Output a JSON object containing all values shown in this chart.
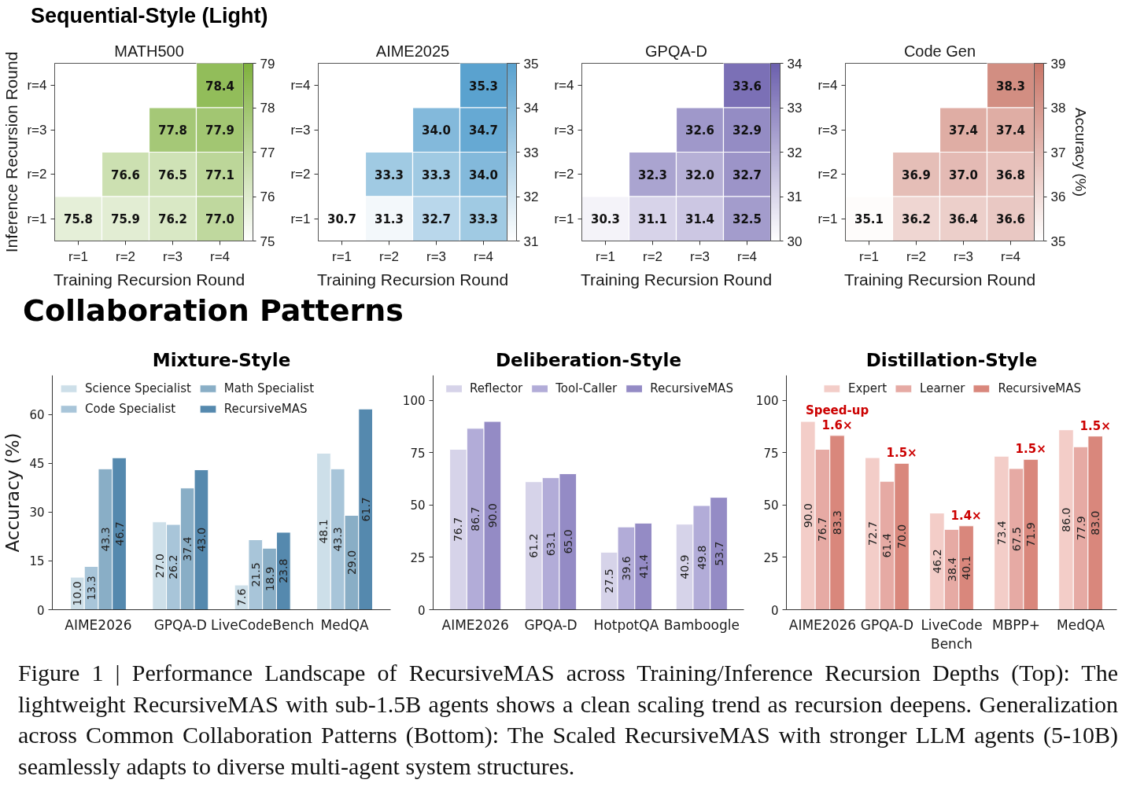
{
  "chart_data": [
    {
      "type": "heatmap",
      "title": "MATH500",
      "xlabel": "Training Recursion Round",
      "ylabel": "Inference Recursion Round",
      "annotations": [
        "Sequential-Style (Light)"
      ],
      "categories": [
        "r=1",
        "r=2",
        "r=3",
        "r=4"
      ],
      "y_categories": [
        "r=4",
        "r=3",
        "r=2",
        "r=1"
      ],
      "cells": [
        [
          null,
          null,
          null,
          78.4
        ],
        [
          null,
          null,
          77.8,
          77.9
        ],
        [
          null,
          76.6,
          76.5,
          77.1
        ],
        [
          75.8,
          75.9,
          76.2,
          77.0
        ]
      ],
      "cell_labels": [
        [
          null,
          null,
          null,
          "78.4"
        ],
        [
          null,
          null,
          "77.8",
          "77.9"
        ],
        [
          null,
          "76.6",
          "76.5",
          "77.1"
        ],
        [
          "75.8",
          "75.9",
          "76.2",
          "77.0"
        ]
      ],
      "clim": [
        75,
        79
      ],
      "cticks": [
        75,
        76,
        77,
        78,
        79
      ],
      "color": "#7fb13d"
    },
    {
      "type": "heatmap",
      "title": "AIME2025",
      "xlabel": "Training Recursion Round",
      "categories": [
        "r=1",
        "r=2",
        "r=3",
        "r=4"
      ],
      "y_categories": [
        "r=4",
        "r=3",
        "r=2",
        "r=1"
      ],
      "cells": [
        [
          null,
          null,
          null,
          35.3
        ],
        [
          null,
          null,
          34.0,
          34.7
        ],
        [
          null,
          33.3,
          33.3,
          34.0
        ],
        [
          30.7,
          31.3,
          32.7,
          33.3
        ]
      ],
      "cell_labels": [
        [
          null,
          null,
          null,
          "35.3"
        ],
        [
          null,
          null,
          "34.0",
          "34.7"
        ],
        [
          null,
          "33.3",
          "33.3",
          "34.0"
        ],
        [
          "30.7",
          "31.3",
          "32.7",
          "33.3"
        ]
      ],
      "clim": [
        31,
        35
      ],
      "cticks": [
        31,
        32,
        33,
        34,
        35
      ],
      "color": "#5aa2cf"
    },
    {
      "type": "heatmap",
      "title": "GPQA-D",
      "xlabel": "Training Recursion Round",
      "categories": [
        "r=1",
        "r=2",
        "r=3",
        "r=4"
      ],
      "y_categories": [
        "r=4",
        "r=3",
        "r=2",
        "r=1"
      ],
      "cells": [
        [
          null,
          null,
          null,
          33.6
        ],
        [
          null,
          null,
          32.6,
          32.9
        ],
        [
          null,
          32.3,
          32.0,
          32.7
        ],
        [
          30.3,
          31.1,
          31.4,
          32.5
        ]
      ],
      "cell_labels": [
        [
          null,
          null,
          null,
          "33.6"
        ],
        [
          null,
          null,
          "32.6",
          "32.9"
        ],
        [
          null,
          "32.3",
          "32.0",
          "32.7"
        ],
        [
          "30.3",
          "31.1",
          "31.4",
          "32.5"
        ]
      ],
      "clim": [
        30,
        34
      ],
      "cticks": [
        30,
        31,
        32,
        33,
        34
      ],
      "color": "#6c60ae"
    },
    {
      "type": "heatmap",
      "title": "Code Gen",
      "xlabel": "Training Recursion Round",
      "clabel": "Accuracy (%)",
      "categories": [
        "r=1",
        "r=2",
        "r=3",
        "r=4"
      ],
      "y_categories": [
        "r=4",
        "r=3",
        "r=2",
        "r=1"
      ],
      "cells": [
        [
          null,
          null,
          null,
          38.3
        ],
        [
          null,
          null,
          37.4,
          37.4
        ],
        [
          null,
          36.9,
          37.0,
          36.8
        ],
        [
          35.1,
          36.2,
          36.4,
          36.6
        ]
      ],
      "cell_labels": [
        [
          null,
          null,
          null,
          "38.3"
        ],
        [
          null,
          null,
          "37.4",
          "37.4"
        ],
        [
          null,
          "36.9",
          "37.0",
          "36.8"
        ],
        [
          "35.1",
          "36.2",
          "36.4",
          "36.6"
        ]
      ],
      "clim": [
        35,
        39
      ],
      "cticks": [
        35,
        36,
        37,
        38,
        39
      ],
      "color": "#c97668"
    },
    {
      "type": "bar",
      "title": "Mixture-Style",
      "ylabel": "Accuracy (%)",
      "annotations": [
        "Collaboration Patterns"
      ],
      "categories": [
        "AIME2026",
        "GPQA-D",
        "LiveCodeBench",
        "MedQA"
      ],
      "series": [
        {
          "name": "Science Specialist",
          "color": "#cddfe9",
          "values": [
            10.0,
            27.0,
            7.6,
            48.1
          ],
          "value_labels": [
            "10.0",
            "27.0",
            "7.6",
            "48.1"
          ]
        },
        {
          "name": "Code Specialist",
          "color": "#a8c5d9",
          "values": [
            13.3,
            26.2,
            21.5,
            43.3
          ],
          "value_labels": [
            "13.3",
            "26.2",
            "21.5",
            "43.3"
          ]
        },
        {
          "name": "Math Specialist",
          "color": "#89aec6",
          "values": [
            43.3,
            37.4,
            18.9,
            29.0
          ],
          "value_labels": [
            "43.3",
            "37.4",
            "18.9",
            "29.0"
          ]
        },
        {
          "name": "RecursiveMAS",
          "color": "#5589ae",
          "values": [
            46.7,
            43.0,
            23.8,
            61.7
          ],
          "value_labels": [
            "46.7",
            "43.0",
            "23.8",
            "61.7"
          ]
        }
      ],
      "ylim": [
        0,
        72
      ],
      "yticks": [
        0,
        15,
        30,
        45,
        60
      ],
      "legend": "top left"
    },
    {
      "type": "bar",
      "title": "Deliberation-Style",
      "categories": [
        "AIME2026",
        "GPQA-D",
        "HotpotQA",
        "Bamboogle"
      ],
      "series": [
        {
          "name": "Reflector",
          "color": "#d6d3e9",
          "values": [
            76.7,
            61.2,
            27.5,
            40.9
          ],
          "value_labels": [
            "76.7",
            "61.2",
            "27.5",
            "40.9"
          ]
        },
        {
          "name": "Tool-Caller",
          "color": "#b2acd8",
          "values": [
            86.7,
            63.1,
            39.6,
            49.8
          ],
          "value_labels": [
            "86.7",
            "63.1",
            "39.6",
            "49.8"
          ]
        },
        {
          "name": "RecursiveMAS",
          "color": "#948bc5",
          "values": [
            90.0,
            65.0,
            41.4,
            53.7
          ],
          "value_labels": [
            "90.0",
            "65.0",
            "41.4",
            "53.7"
          ]
        }
      ],
      "ylim": [
        0,
        112
      ],
      "yticks": [
        0,
        25,
        50,
        75,
        100
      ],
      "legend": "top"
    },
    {
      "type": "bar",
      "title": "Distillation-Style",
      "categories": [
        "AIME2026",
        "GPQA-D",
        "LiveCode\nBench",
        "MBPP+",
        "MedQA"
      ],
      "series": [
        {
          "name": "Expert",
          "color": "#f3cdc8",
          "values": [
            90.0,
            72.7,
            46.2,
            73.4,
            86.0
          ],
          "value_labels": [
            "90.0",
            "72.7",
            "46.2",
            "73.4",
            "86.0"
          ]
        },
        {
          "name": "Learner",
          "color": "#e6aaa4",
          "values": [
            76.7,
            61.4,
            38.4,
            67.5,
            77.9
          ],
          "value_labels": [
            "76.7",
            "61.4",
            "38.4",
            "67.5",
            "77.9"
          ]
        },
        {
          "name": "RecursiveMAS",
          "color": "#d9877c",
          "values": [
            83.3,
            70.0,
            40.1,
            71.9,
            83.0
          ],
          "value_labels": [
            "83.3",
            "70.0",
            "40.1",
            "71.9",
            "83.0"
          ]
        }
      ],
      "ylim": [
        0,
        112
      ],
      "yticks": [
        0,
        25,
        50,
        75,
        100
      ],
      "legend": "top",
      "annotations": [
        "Speed-up",
        "1.6×",
        "1.5×",
        "1.4×",
        "1.5×",
        "1.5×",
        "Figure 1 | Performance Landscape of RecursiveMAS across Training/Inference Recursion Depths (Top): The lightweight RecursiveMAS with sub-1.5B agents shows a clean scaling trend as recursion deepens. Generalization across Common Collaboration Patterns (Bottom): The Scaled RecursiveMAS with stronger LLM agents (5-10B) seamlessly adapts to diverse multi-agent system structures."
      ]
    }
  ]
}
